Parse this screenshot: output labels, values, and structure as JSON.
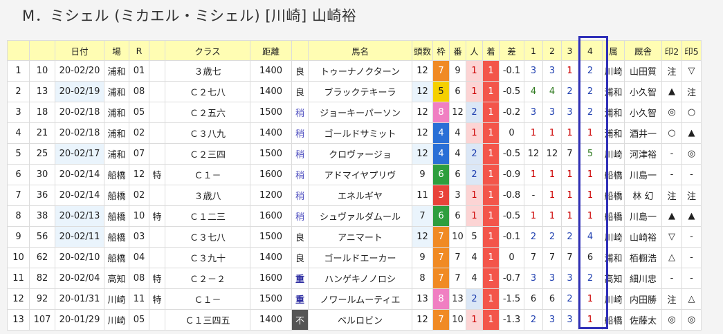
{
  "title": "M．ミシェル (ミカエル・ミシェル) [川崎] 山崎裕",
  "headers": [
    "",
    "",
    "日付",
    "場",
    "R",
    "",
    "クラス",
    "距離",
    "",
    "馬名",
    "頭数",
    "枠",
    "番",
    "人",
    "着",
    "差",
    "1",
    "2",
    "3",
    "4",
    "属",
    "厩舎",
    "印2",
    "印5"
  ],
  "colors": {
    "header_bg": "#fffdb3",
    "highlight_border": "#3030b8",
    "waku_7": "#f08a24",
    "waku_5": "#f5d000",
    "waku_8": "#f07fc2",
    "waku_4": "#2a6fd6",
    "waku_6": "#2e9e3e",
    "waku_3": "#e8433a"
  },
  "rows": [
    {
      "no": "1",
      "id": "10",
      "date": "20-02/20",
      "track": "浦和",
      "r": "01",
      "sp": "",
      "cls": "３歳七",
      "dist": "1400",
      "cond": "良",
      "name": "トゥーナノクターン",
      "heads": "12",
      "waku": "7",
      "ban": "9",
      "pop": "1",
      "fin": "1",
      "diff": "-0.1",
      "c1": "3",
      "c2": "3",
      "c3": "1",
      "c4": "2",
      "zoku": "川崎",
      "trainer": "山田質",
      "m2": "注",
      "m5": "▽"
    },
    {
      "no": "2",
      "id": "13",
      "date": "20-02/19",
      "track": "浦和",
      "r": "08",
      "sp": "",
      "cls": "Ｃ２七八",
      "dist": "1400",
      "cond": "良",
      "name": "ブラックテキーラ",
      "heads": "12",
      "waku": "5",
      "ban": "6",
      "pop": "1",
      "fin": "1",
      "diff": "-0.5",
      "c1": "4",
      "c2": "4",
      "c3": "2",
      "c4": "2",
      "zoku": "浦和",
      "trainer": "小久智",
      "m2": "▲",
      "m5": "注"
    },
    {
      "no": "3",
      "id": "18",
      "date": "20-02/18",
      "track": "浦和",
      "r": "05",
      "sp": "",
      "cls": "Ｃ２五六",
      "dist": "1500",
      "cond": "稍",
      "name": "ジョーキーパーソン",
      "heads": "12",
      "waku": "8",
      "ban": "12",
      "pop": "2",
      "fin": "1",
      "diff": "-0.2",
      "c1": "3",
      "c2": "3",
      "c3": "3",
      "c4": "2",
      "zoku": "浦和",
      "trainer": "小久智",
      "m2": "◎",
      "m5": "○"
    },
    {
      "no": "4",
      "id": "21",
      "date": "20-02/18",
      "track": "浦和",
      "r": "02",
      "sp": "",
      "cls": "Ｃ３八九",
      "dist": "1400",
      "cond": "稍",
      "name": "ゴールドサミット",
      "heads": "12",
      "waku": "4",
      "ban": "4",
      "pop": "1",
      "fin": "1",
      "diff": "0",
      "c1": "1",
      "c2": "1",
      "c3": "1",
      "c4": "1",
      "zoku": "浦和",
      "trainer": "酒井一",
      "m2": "○",
      "m5": "▲"
    },
    {
      "no": "5",
      "id": "25",
      "date": "20-02/17",
      "track": "浦和",
      "r": "07",
      "sp": "",
      "cls": "Ｃ２三四",
      "dist": "1500",
      "cond": "稍",
      "name": "クロヴァージョ",
      "heads": "12",
      "waku": "4",
      "ban": "4",
      "pop": "2",
      "fin": "1",
      "diff": "-0.5",
      "c1": "12",
      "c2": "12",
      "c3": "7",
      "c4": "5",
      "zoku": "川崎",
      "trainer": "河津裕",
      "m2": "-",
      "m5": "◎"
    },
    {
      "no": "6",
      "id": "30",
      "date": "20-02/14",
      "track": "船橋",
      "r": "12",
      "sp": "特",
      "cls": "Ｃ１－",
      "dist": "1600",
      "cond": "稍",
      "name": "アドマイヤプリヴ",
      "heads": "9",
      "waku": "6",
      "ban": "6",
      "pop": "2",
      "fin": "1",
      "diff": "-0.9",
      "c1": "1",
      "c2": "1",
      "c3": "1",
      "c4": "1",
      "zoku": "船橋",
      "trainer": "川島一",
      "m2": "-",
      "m5": "-"
    },
    {
      "no": "7",
      "id": "36",
      "date": "20-02/14",
      "track": "船橋",
      "r": "02",
      "sp": "",
      "cls": "３歳八",
      "dist": "1200",
      "cond": "稍",
      "name": "エネルギヤ",
      "heads": "11",
      "waku": "3",
      "ban": "3",
      "pop": "1",
      "fin": "1",
      "diff": "-0.8",
      "c1": "-",
      "c2": "1",
      "c3": "1",
      "c4": "1",
      "zoku": "船橋",
      "trainer": "林 幻",
      "m2": "注",
      "m5": "注"
    },
    {
      "no": "8",
      "id": "38",
      "date": "20-02/13",
      "track": "船橋",
      "r": "10",
      "sp": "特",
      "cls": "Ｃ１二三",
      "dist": "1600",
      "cond": "稍",
      "name": "シュヴァルダムール",
      "heads": "7",
      "waku": "6",
      "ban": "6",
      "pop": "1",
      "fin": "1",
      "diff": "-0.5",
      "c1": "1",
      "c2": "1",
      "c3": "1",
      "c4": "1",
      "zoku": "船橋",
      "trainer": "川島一",
      "m2": "▲",
      "m5": "▲"
    },
    {
      "no": "9",
      "id": "56",
      "date": "20-02/11",
      "track": "船橋",
      "r": "03",
      "sp": "",
      "cls": "Ｃ３七八",
      "dist": "1500",
      "cond": "良",
      "name": "アニマート",
      "heads": "12",
      "waku": "7",
      "ban": "10",
      "pop": "5",
      "fin": "1",
      "diff": "-0.1",
      "c1": "2",
      "c2": "2",
      "c3": "2",
      "c4": "4",
      "zoku": "川崎",
      "trainer": "山崎裕",
      "m2": "▽",
      "m5": "-"
    },
    {
      "no": "10",
      "id": "62",
      "date": "20-02/10",
      "track": "船橋",
      "r": "04",
      "sp": "",
      "cls": "Ｃ３九十",
      "dist": "1400",
      "cond": "良",
      "name": "ゴールドエーカー",
      "heads": "9",
      "waku": "7",
      "ban": "7",
      "pop": "4",
      "fin": "1",
      "diff": "0",
      "c1": "7",
      "c2": "7",
      "c3": "7",
      "c4": "6",
      "zoku": "浦和",
      "trainer": "栢橱浩",
      "m2": "△",
      "m5": "-"
    },
    {
      "no": "11",
      "id": "82",
      "date": "20-02/04",
      "track": "高知",
      "r": "08",
      "sp": "特",
      "cls": "Ｃ２－２",
      "dist": "1600",
      "cond": "重",
      "name": "ハンゲキノノロシ",
      "heads": "8",
      "waku": "7",
      "ban": "7",
      "pop": "4",
      "fin": "1",
      "diff": "-0.7",
      "c1": "3",
      "c2": "3",
      "c3": "3",
      "c4": "2",
      "zoku": "高知",
      "trainer": "細川忠",
      "m2": "-",
      "m5": "-"
    },
    {
      "no": "12",
      "id": "92",
      "date": "20-01/31",
      "track": "川崎",
      "r": "11",
      "sp": "特",
      "cls": "Ｃ１－",
      "dist": "1500",
      "cond": "重",
      "name": "ノワールムーティエ",
      "heads": "13",
      "waku": "8",
      "ban": "13",
      "pop": "2",
      "fin": "1",
      "diff": "-1.5",
      "c1": "6",
      "c2": "6",
      "c3": "2",
      "c4": "1",
      "zoku": "川崎",
      "trainer": "内田勝",
      "m2": "注",
      "m5": "△"
    },
    {
      "no": "13",
      "id": "107",
      "date": "20-01/29",
      "track": "川崎",
      "r": "05",
      "sp": "",
      "cls": "Ｃ１三四五",
      "dist": "1400",
      "cond": "不",
      "name": "ベルロビン",
      "heads": "12",
      "waku": "7",
      "ban": "10",
      "pop": "1",
      "fin": "1",
      "diff": "-1.3",
      "c1": "2",
      "c2": "3",
      "c3": "3",
      "c4": "1",
      "zoku": "船橋",
      "trainer": "佐藤太",
      "m2": "◎",
      "m5": "◎"
    }
  ]
}
